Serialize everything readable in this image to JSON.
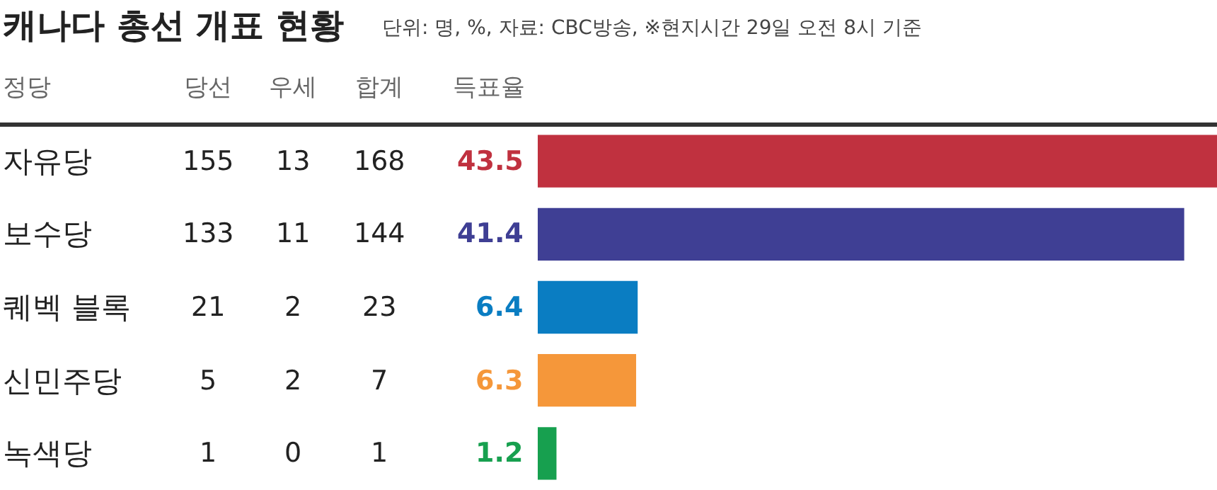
{
  "chart_data": [
    {
      "type": "heatmap",
      "title": "캐나다 총선 개표 현황",
      "ylabel": "정당",
      "data_labels": true,
      "categories": [
        "당선",
        "우세",
        "합계"
      ],
      "y_categories": [
        "자유당",
        "보수당",
        "퀘벡 블록",
        "신민주당",
        "녹색당"
      ],
      "cells": [
        [
          155,
          13,
          168
        ],
        [
          133,
          11,
          144
        ],
        [
          21,
          2,
          23
        ],
        [
          5,
          2,
          7
        ],
        [
          1,
          0,
          1
        ]
      ]
    },
    {
      "type": "bar",
      "orientation": "horizontal",
      "data_labels": true,
      "subtitle": "단위: 명, %, 자료: CBC방송, ※현지시간 29일 오전 8시 기준",
      "xlabel": "득표율",
      "categories": [
        null,
        null,
        null,
        null,
        null
      ],
      "values": [
        43.5,
        41.4,
        6.4,
        6.3,
        1.2
      ],
      "colors": [
        "#c0313f",
        "#3f3f94",
        "#0a7dc2",
        "#f5973a",
        "#17a04f"
      ]
    }
  ]
}
